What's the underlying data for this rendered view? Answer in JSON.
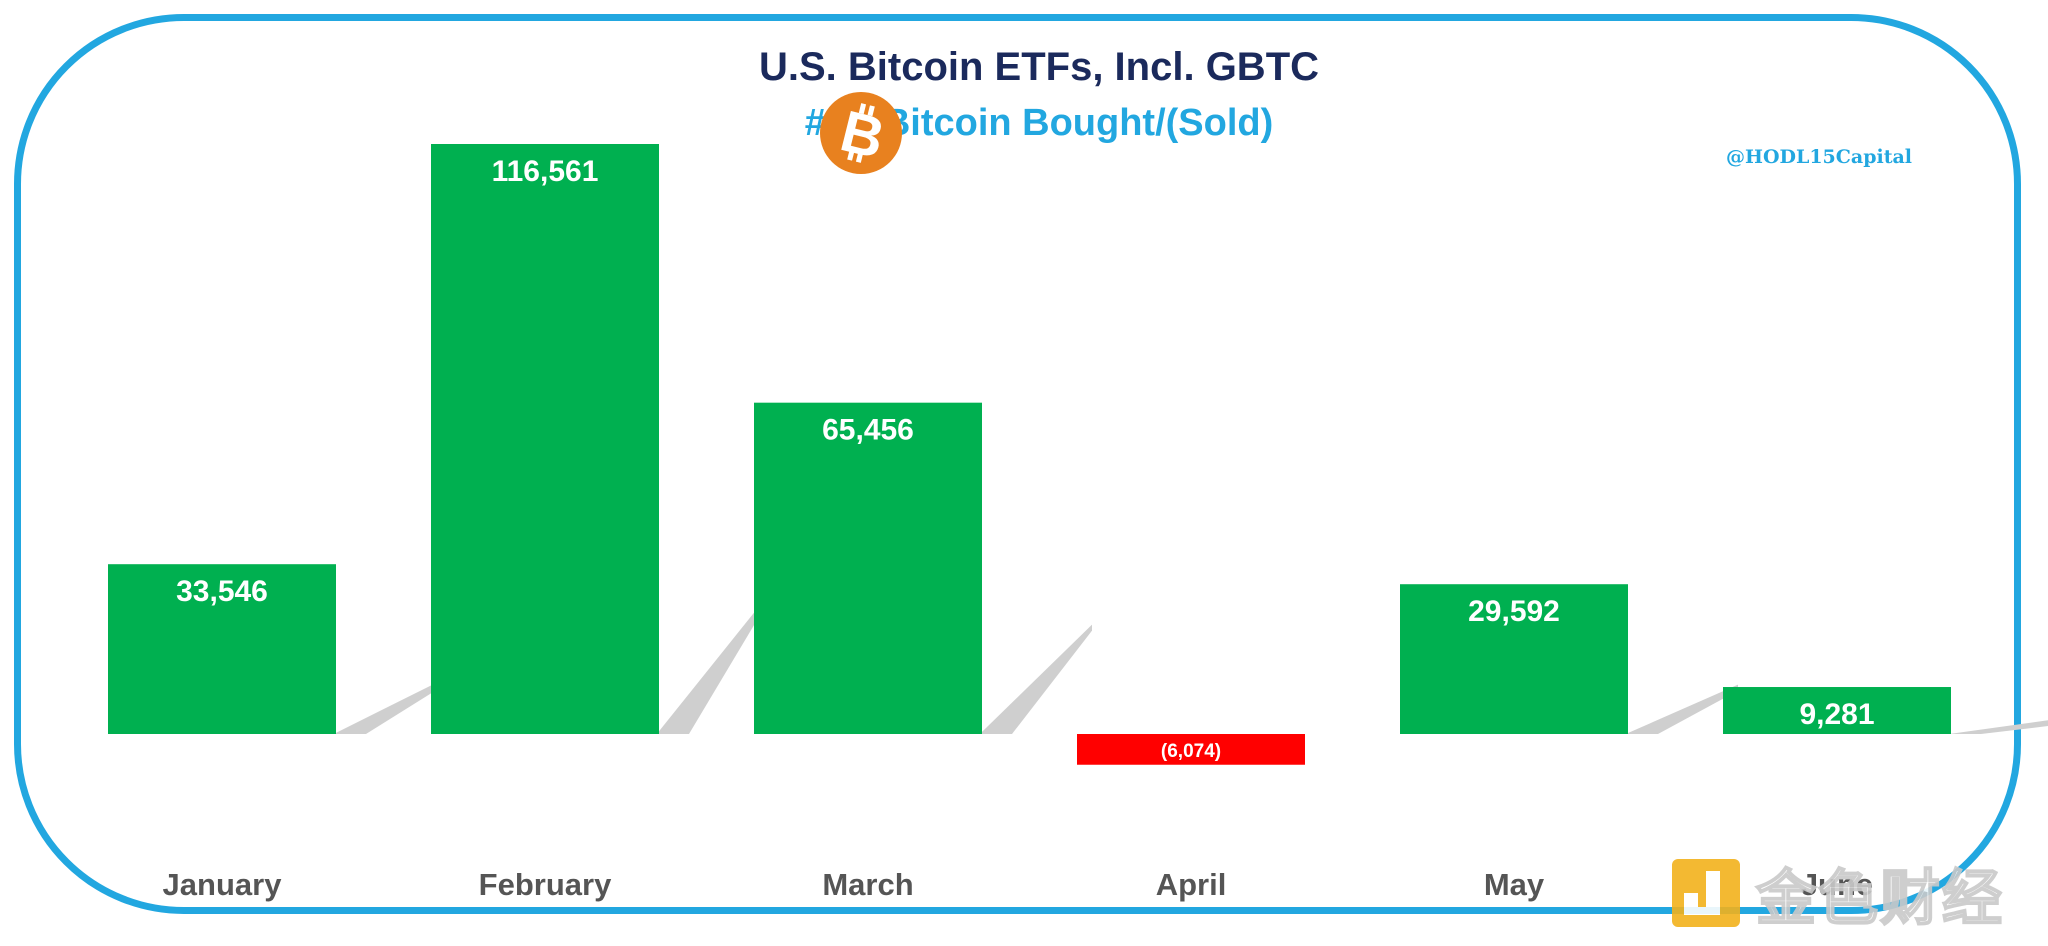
{
  "title": "U.S. Bitcoin ETFs, Incl. GBTC",
  "subtitle": "# of Bitcoin Bought/(Sold)",
  "handle": "@HODL15Capital",
  "watermark": "金色财经",
  "logo_icon": "bitcoin-icon",
  "colors": {
    "positive": "#00b050",
    "negative": "#ff0000",
    "title": "#1b2a5c",
    "accent": "#22a7e0",
    "bitcoin": "#e8811f"
  },
  "chart_data": {
    "type": "bar",
    "title": "U.S. Bitcoin ETFs, Incl. GBTC",
    "subtitle": "# of Bitcoin Bought/(Sold)",
    "categories": [
      "January",
      "February",
      "March",
      "April",
      "May",
      "June"
    ],
    "values": [
      33546,
      116561,
      65456,
      -6074,
      29592,
      9281
    ],
    "data_labels": [
      "33,546",
      "116,561",
      "65,456",
      "(6,074)",
      "29,592",
      "9,281"
    ],
    "xlabel": "",
    "ylabel": "",
    "ylim": [
      -10000,
      120000
    ],
    "grid": false,
    "legend": "none"
  }
}
